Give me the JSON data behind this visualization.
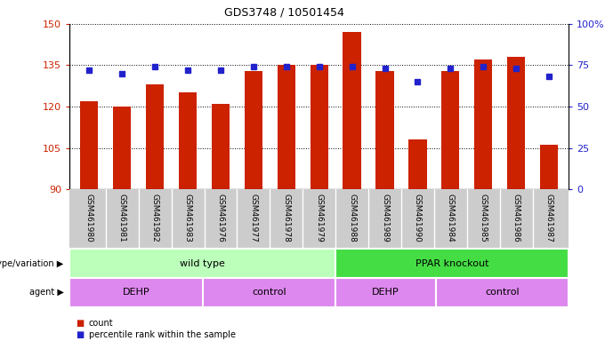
{
  "title": "GDS3748 / 10501454",
  "samples": [
    "GSM461980",
    "GSM461981",
    "GSM461982",
    "GSM461983",
    "GSM461976",
    "GSM461977",
    "GSM461978",
    "GSM461979",
    "GSM461988",
    "GSM461989",
    "GSM461990",
    "GSM461984",
    "GSM461985",
    "GSM461986",
    "GSM461987"
  ],
  "counts": [
    122,
    120,
    128,
    125,
    121,
    133,
    135,
    135,
    147,
    133,
    108,
    133,
    137,
    138,
    106
  ],
  "percentile_ranks": [
    72,
    70,
    74,
    72,
    72,
    74,
    74,
    74,
    74,
    73,
    65,
    73,
    74,
    73,
    68
  ],
  "ylim_left": [
    90,
    150
  ],
  "ylim_right": [
    0,
    100
  ],
  "yticks_left": [
    90,
    105,
    120,
    135,
    150
  ],
  "yticks_right": [
    0,
    25,
    50,
    75,
    100
  ],
  "ytick_right_labels": [
    "0",
    "25",
    "50",
    "75",
    "100%"
  ],
  "bar_color": "#cc2200",
  "marker_color": "#2222cc",
  "bar_width": 0.55,
  "genotype_labels": [
    {
      "label": "wild type",
      "start": 0,
      "end": 8
    },
    {
      "label": "PPAR knockout",
      "start": 8,
      "end": 15
    }
  ],
  "agent_labels": [
    {
      "label": "DEHP",
      "start": 0,
      "end": 4
    },
    {
      "label": "control",
      "start": 4,
      "end": 8
    },
    {
      "label": "DEHP",
      "start": 8,
      "end": 11
    },
    {
      "label": "control",
      "start": 11,
      "end": 15
    }
  ],
  "genotype_colors": [
    "#bbffbb",
    "#44dd44"
  ],
  "agent_color": "#cc66cc",
  "agent_color2": "#dd88ee",
  "background_color": "#ffffff",
  "legend_count_color": "#cc2200",
  "legend_marker_color": "#2222cc",
  "tick_bg_color": "#cccccc",
  "n_samples": 15
}
